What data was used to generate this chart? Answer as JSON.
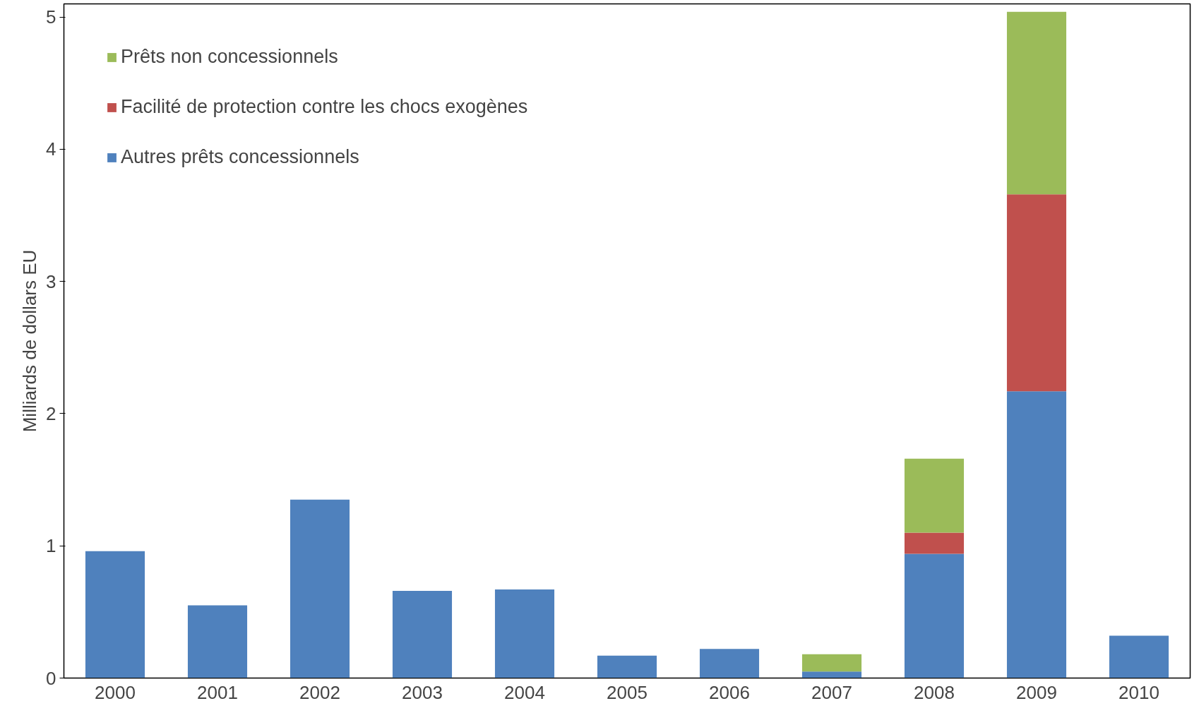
{
  "chart_data": {
    "type": "bar",
    "stacked": true,
    "ylabel": "Milliards de dollars EU",
    "categories": [
      "2000",
      "2001",
      "2002",
      "2003",
      "2004",
      "2005",
      "2006",
      "2007",
      "2008",
      "2009",
      "2010"
    ],
    "series": [
      {
        "name": "Autres prêts concessionnels",
        "color": "#4f81bd",
        "values": [
          0.96,
          0.55,
          1.35,
          0.66,
          0.67,
          0.17,
          0.22,
          0.05,
          0.94,
          2.17,
          0.32
        ]
      },
      {
        "name": "Facilité de protection contre les chocs exogènes",
        "color": "#c0504d",
        "values": [
          0,
          0,
          0,
          0,
          0,
          0,
          0,
          0,
          0.16,
          1.49,
          0
        ]
      },
      {
        "name": "Prêts non concessionnels",
        "color": "#9bbb59",
        "values": [
          0,
          0,
          0,
          0,
          0,
          0,
          0,
          0.13,
          0.56,
          1.38,
          0
        ]
      }
    ],
    "ylim": [
      0,
      5.1
    ],
    "yticks": [
      0,
      1,
      2,
      3,
      4,
      5
    ],
    "grid": false,
    "legend": "top left"
  }
}
